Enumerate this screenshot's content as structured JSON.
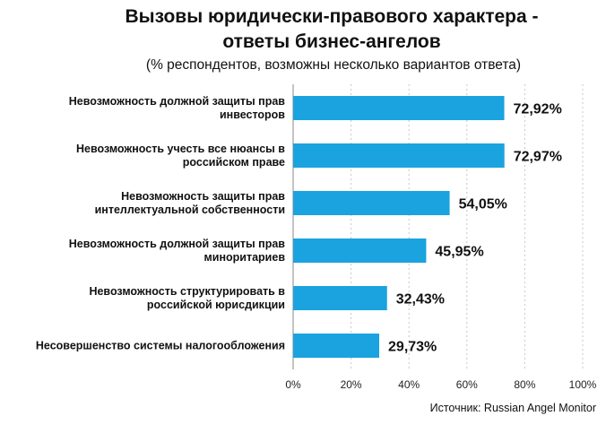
{
  "chart_data": {
    "type": "bar",
    "orientation": "horizontal",
    "title_lines": [
      "Вызовы юридически-правового характера  -",
      "ответы бизнес-ангелов"
    ],
    "subtitle": "(% респондентов, возможны несколько вариантов ответа)",
    "categories": [
      [
        "Невозможность должной защиты прав",
        "инвесторов"
      ],
      [
        "Невозможность учесть все нюансы в",
        "российском праве"
      ],
      [
        "Невозможность защиты прав",
        "интеллектуальной собственности"
      ],
      [
        "Невозможность должной защиты прав",
        "миноритариев"
      ],
      [
        "Невозможность структурировать в",
        "российской юрисдикции"
      ],
      [
        "Несовершенство системы налогообложения"
      ]
    ],
    "values": [
      72.92,
      72.97,
      54.05,
      45.95,
      32.43,
      29.73
    ],
    "value_labels": [
      "72,92%",
      "72,97%",
      "54,05%",
      "45,95%",
      "32,43%",
      "29,73%"
    ],
    "xlim": [
      0,
      100
    ],
    "x_ticks": [
      0,
      20,
      40,
      60,
      80,
      100
    ],
    "x_tick_labels": [
      "0%",
      "20%",
      "40%",
      "60%",
      "80%",
      "100%"
    ],
    "grid": true,
    "bar_color": "#1aa3de",
    "source": "Источник:  Russian Angel Monitor"
  }
}
